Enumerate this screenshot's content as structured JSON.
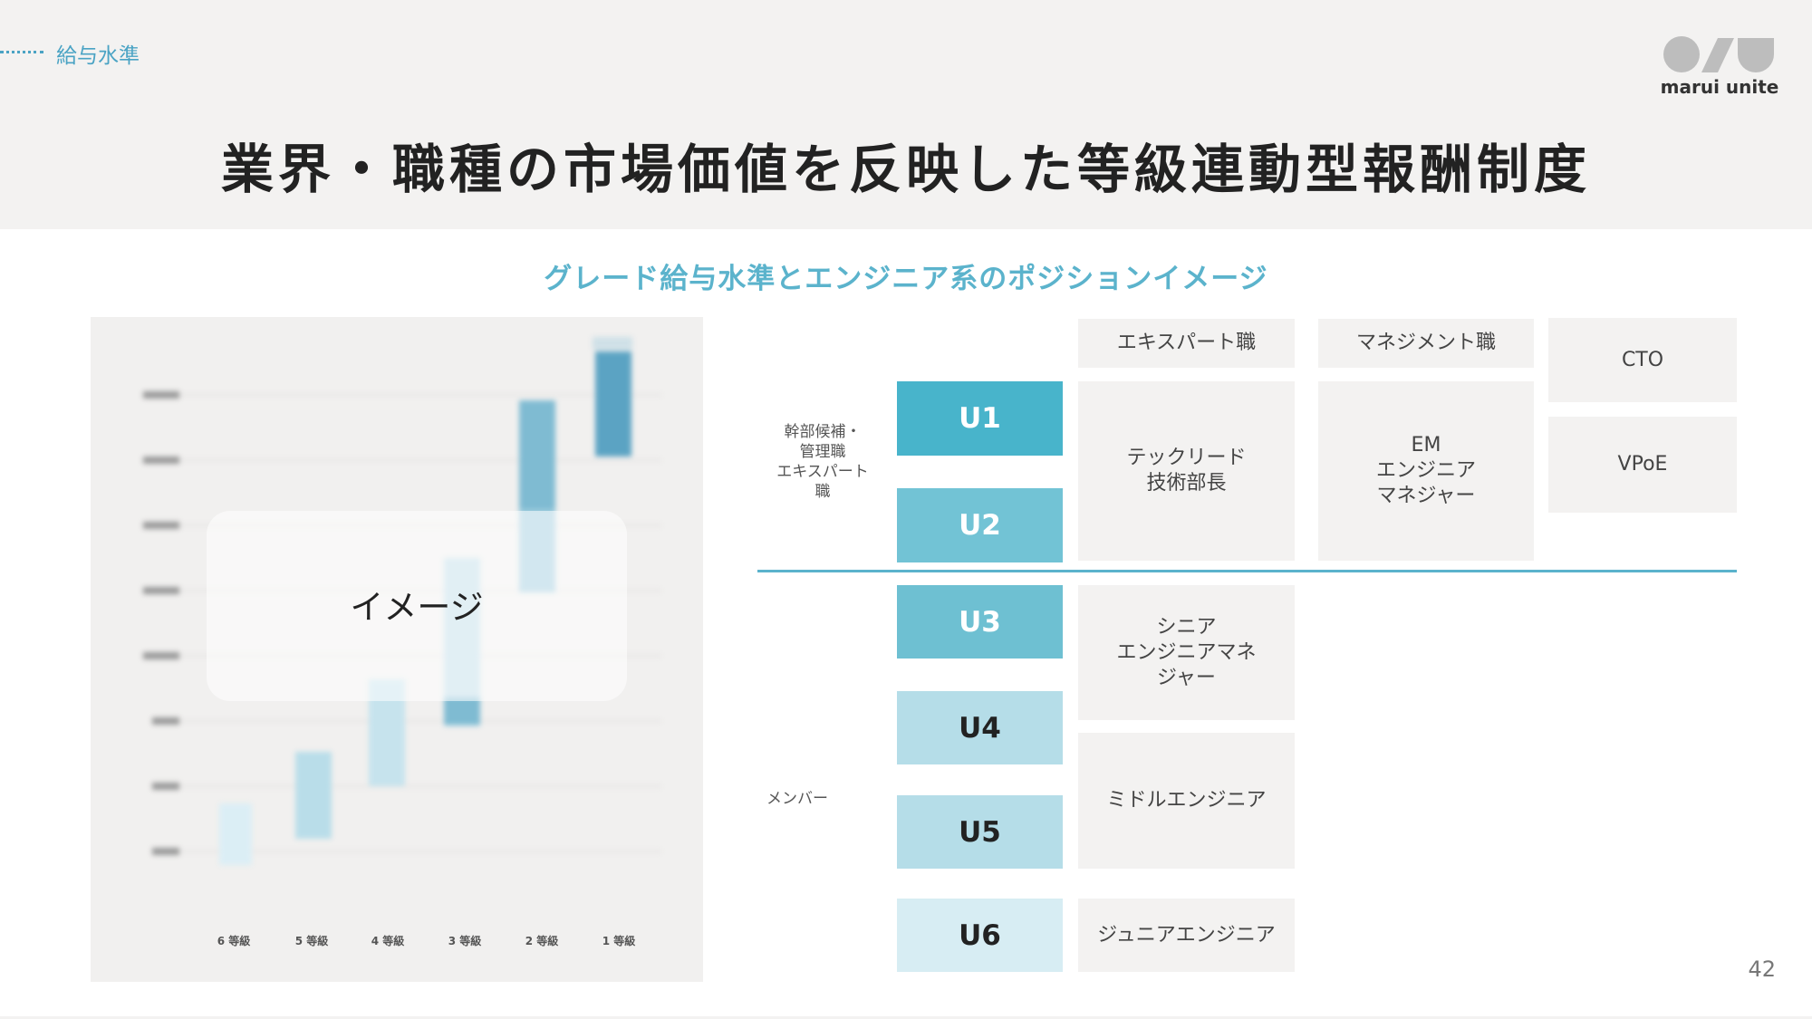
{
  "section_label": "給与水準",
  "brand": {
    "name": "marui unite"
  },
  "title": "業界・職種の市場価値を反映した等級連動型報酬制度",
  "subtitle": "グレード給与水準とエンジニア系のポジションイメージ",
  "image_panel": {
    "overlay_text": "イメージ",
    "grade_labels": [
      "6 等級",
      "5 等級",
      "4 等級",
      "3 等級",
      "2 等級",
      "1 等級"
    ],
    "colors": {
      "bar_light": "#dbeef5",
      "bar_mid": "#b9dde9",
      "bar_dark": "#7fbbd2",
      "bar_darkest": "#5ba3c3"
    }
  },
  "grades": {
    "u1": "U1",
    "u2": "U2",
    "u3": "U3",
    "u4": "U4",
    "u5": "U5",
    "u6": "U6",
    "colors": {
      "u1": "#48b4cb",
      "u2": "#72c3d5",
      "u3": "#6ec0d2",
      "u4": "#b5dde8",
      "u5": "#b5dde8",
      "u6": "#d7edf3"
    }
  },
  "groups": {
    "upper": "幹部候補・\n管理職\nエキスパート\n職",
    "lower": "メンバー"
  },
  "tracks": {
    "expert_header": "エキスパート職",
    "management_header": "マネジメント職",
    "cto": "CTO",
    "vpoe": "VPoE",
    "tech_lead": "テックリード\n技術部長",
    "em": "EM\nエンジニア\nマネジャー",
    "senior": "シニア\nエンジニアマネ\nジャー",
    "middle": "ミドルエンジニア",
    "junior": "ジュニアエンジニア"
  },
  "page_number": "42"
}
